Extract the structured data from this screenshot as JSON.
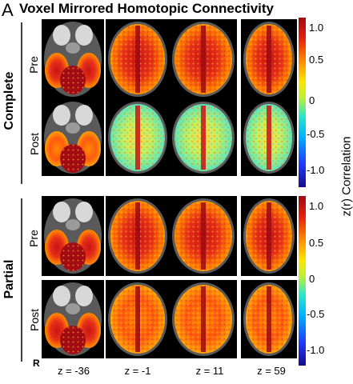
{
  "figure": {
    "panel_letter": "A",
    "title": "Voxel Mirrored Homotopic Connectivity",
    "groups": [
      {
        "label": "Complete",
        "rows": [
          "Pre",
          "Post"
        ]
      },
      {
        "label": "Partial",
        "rows": [
          "Pre",
          "Post"
        ]
      }
    ],
    "slices": [
      "z = -36",
      "z = -1",
      "z = 11",
      "z = 59"
    ],
    "orientation_label": "R",
    "colorbar": {
      "title": "z(r) Correlation",
      "ticks": [
        "1.0",
        "0.5",
        "0",
        "-0.5",
        "-1.0"
      ],
      "tick_values": [
        1.0,
        0.5,
        0,
        -0.5,
        -1.0
      ],
      "range": [
        -1.2,
        1.2
      ],
      "colormap": [
        "#1a0a8c",
        "#1e3cff",
        "#00b4ff",
        "#2ee6c8",
        "#b4f03c",
        "#ffe600",
        "#ff8c00",
        "#e81e0a",
        "#a00a14"
      ]
    },
    "colors": {
      "background": "#ffffff",
      "brain_outline": "#5a5a5a",
      "high": "#c81414",
      "medium": "#ff9a00",
      "low": "#8ee87a"
    }
  }
}
